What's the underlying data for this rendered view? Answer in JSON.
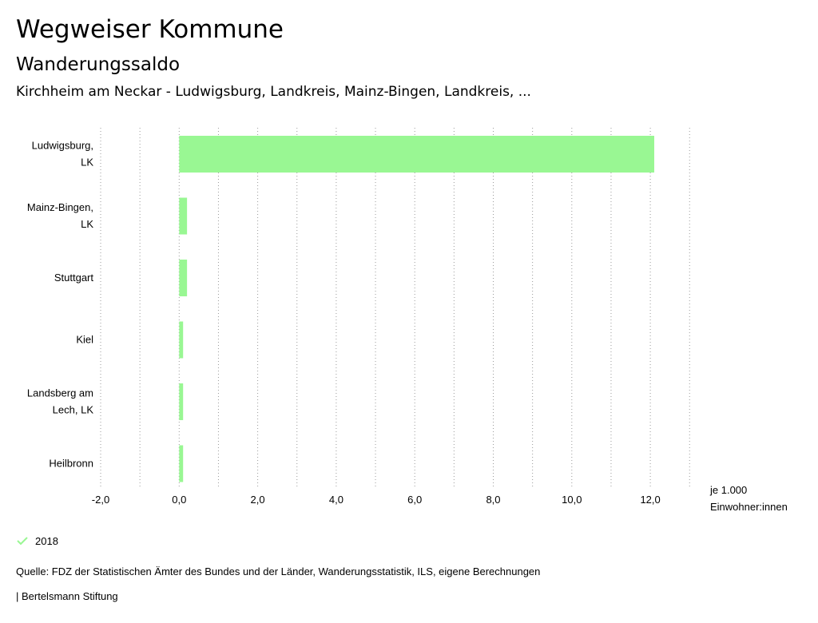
{
  "header": {
    "app_title": "Wegweiser Kommune",
    "chart_title": "Wanderungssaldo",
    "chart_subtitle": "Kirchheim am Neckar - Ludwigsburg, Landkreis, Mainz-Bingen, Landkreis, ..."
  },
  "chart_data": {
    "type": "bar",
    "orientation": "horizontal",
    "categories": [
      [
        "Ludwigsburg,",
        "LK"
      ],
      [
        "Mainz-Bingen,",
        "LK"
      ],
      [
        "Stuttgart"
      ],
      [
        "Kiel"
      ],
      [
        "Landsberg am",
        "Lech, LK"
      ],
      [
        "Heilbronn"
      ]
    ],
    "series": [
      {
        "name": "2018",
        "values": [
          12.1,
          0.2,
          0.2,
          0.1,
          0.1,
          0.1
        ]
      }
    ],
    "x_ticks": [
      -2,
      0,
      2,
      4,
      6,
      8,
      10,
      12
    ],
    "x_tick_labels": [
      "-2,0",
      "0,0",
      "2,0",
      "4,0",
      "6,0",
      "8,0",
      "10,0",
      "12,0"
    ],
    "xlim": [
      -2,
      13
    ],
    "x_unit_label": [
      "je 1.000",
      "Einwohner:innen"
    ],
    "grid": "vertical-dotted",
    "bar_color": "#99f793"
  },
  "legend": {
    "label": "2018",
    "color": "#99f793"
  },
  "footer": {
    "source": "Quelle: FDZ der Statistischen Ämter des Bundes und der Länder, Wanderungsstatistik, ILS, eigene Berechnungen",
    "publisher": "| Bertelsmann Stiftung"
  }
}
